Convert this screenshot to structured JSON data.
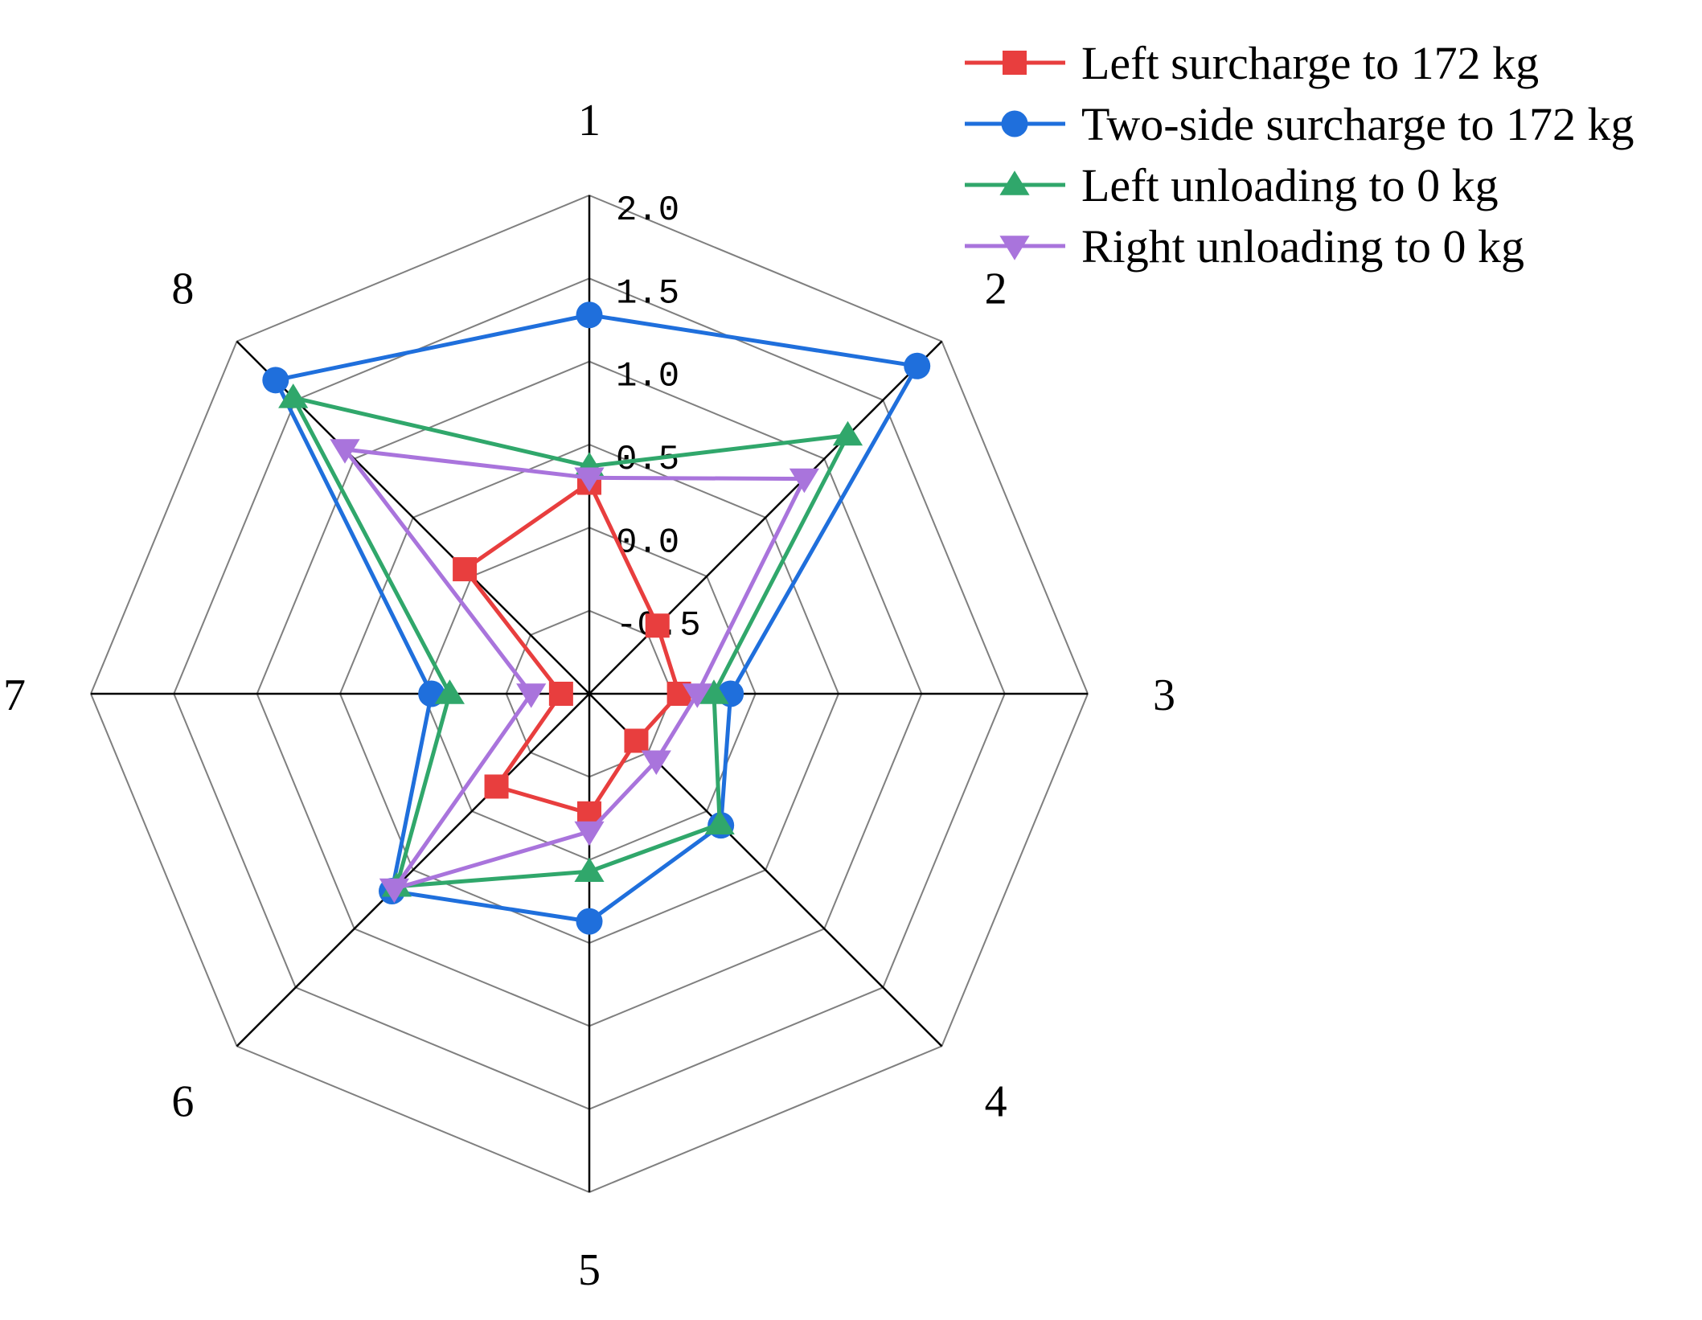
{
  "chart_data": {
    "type": "radar",
    "categories": [
      "1",
      "2",
      "3",
      "4",
      "5",
      "6",
      "7",
      "8"
    ],
    "ticks": [
      "2.0",
      "1.5",
      "1.0",
      "0.5",
      "0.0",
      "-0.5"
    ],
    "rlim": [
      -1.0,
      2.0
    ],
    "grid": true,
    "legend_position": "top-right",
    "series": [
      {
        "name": "Left surcharge to 172 kg",
        "color": "#e83e3e",
        "marker": "square",
        "values": [
          0.27,
          -0.42,
          -0.46,
          -0.6,
          -0.28,
          -0.21,
          -0.83,
          0.06
        ]
      },
      {
        "name": "Two-side surcharge to 172 kg",
        "color": "#1f6fdc",
        "marker": "circle",
        "values": [
          1.28,
          1.79,
          -0.15,
          0.12,
          0.37,
          0.68,
          -0.05,
          1.67
        ]
      },
      {
        "name": "Left unloading to 0 kg",
        "color": "#30a76b",
        "marker": "triangle-up",
        "values": [
          0.37,
          1.2,
          -0.25,
          0.11,
          0.07,
          0.64,
          -0.16,
          1.52
        ]
      },
      {
        "name": "Right unloading to 0 kg",
        "color": "#a974dc",
        "marker": "triangle-down",
        "values": [
          0.3,
          0.83,
          -0.35,
          -0.43,
          -0.17,
          0.66,
          -0.65,
          1.08
        ]
      }
    ]
  }
}
